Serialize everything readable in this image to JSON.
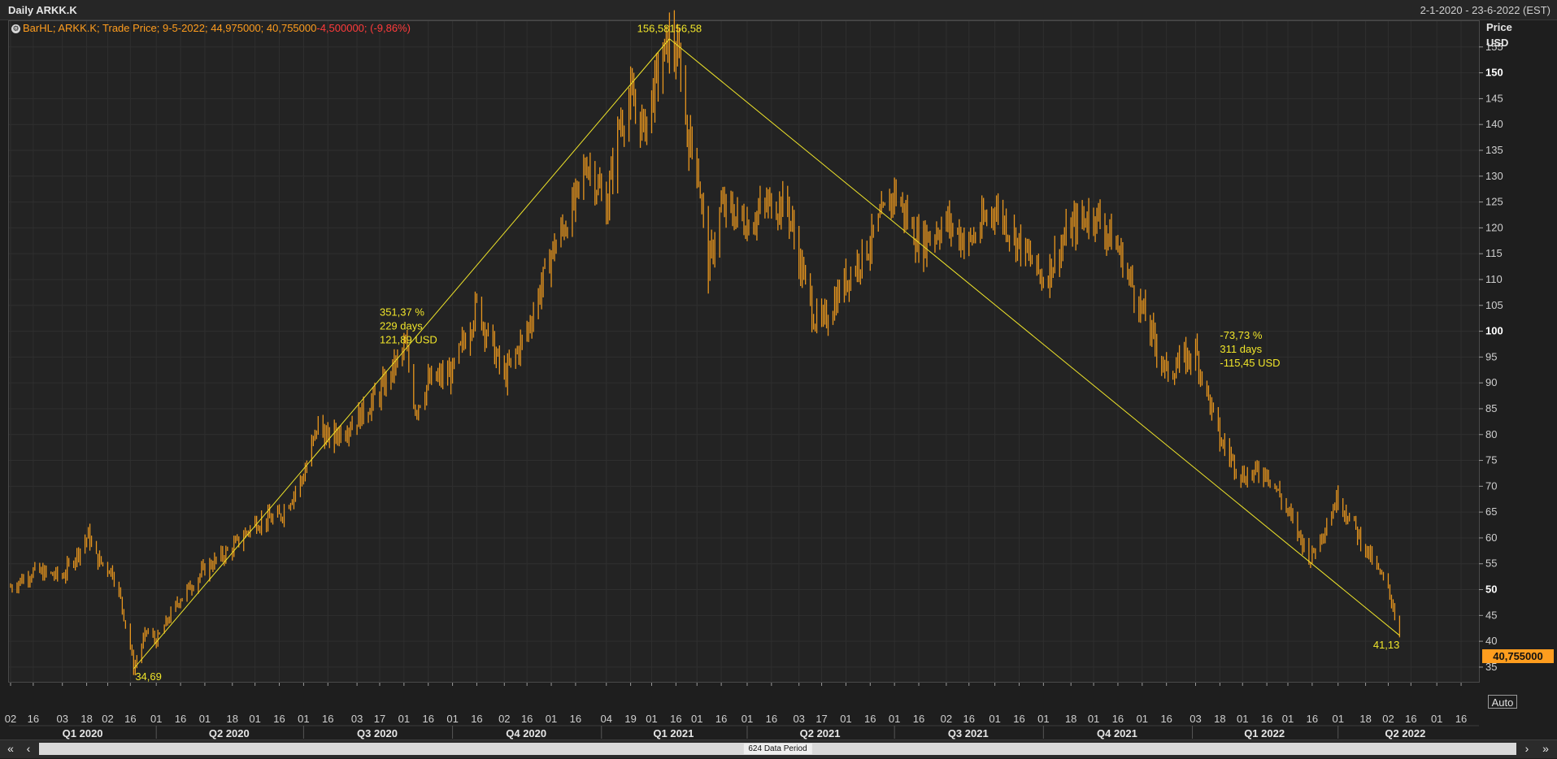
{
  "window": {
    "title": "Daily ARKK.K",
    "date_range": "2-1-2020 - 23-6-2022 (EST)"
  },
  "legend": {
    "icon": "settings-icon",
    "prefix": "BarHL; ARKK.K; Trade Price; 9-5-2022; 44,975000; 40,755000",
    "change": "-4,500000; (-9,86%)"
  },
  "y_axis": {
    "unit_line1": "Price",
    "unit_line2": "USD",
    "last_price_label": "40,755000",
    "auto_label": "Auto"
  },
  "scroll": {
    "label": "624 Data Period",
    "first_icon": "double-chevron-left-icon",
    "prev_icon": "chevron-left-icon",
    "next_icon": "chevron-right-icon",
    "last_icon": "double-chevron-right-icon"
  },
  "colors": {
    "bars": "#e8961e",
    "trendline": "#f0e52a",
    "annotation": "#f0e52a",
    "last_price_bg": "#ff9d1e"
  },
  "chart_data": {
    "type": "ohlc-bar",
    "title": "Daily ARKK.K",
    "ylabel": "Price USD",
    "ylim": [
      32,
      160
    ],
    "y_ticks": [
      {
        "value": 35,
        "label": "35"
      },
      {
        "value": 40,
        "label": "40"
      },
      {
        "value": 45,
        "label": "45"
      },
      {
        "value": 50,
        "label": "50"
      },
      {
        "value": 55,
        "label": "55"
      },
      {
        "value": 60,
        "label": "60"
      },
      {
        "value": 65,
        "label": "65"
      },
      {
        "value": 70,
        "label": "70"
      },
      {
        "value": 75,
        "label": "75"
      },
      {
        "value": 80,
        "label": "80"
      },
      {
        "value": 85,
        "label": "85"
      },
      {
        "value": 90,
        "label": "90"
      },
      {
        "value": 95,
        "label": "95"
      },
      {
        "value": 100,
        "label": "100"
      },
      {
        "value": 105,
        "label": "105"
      },
      {
        "value": 110,
        "label": "110"
      },
      {
        "value": 115,
        "label": "115"
      },
      {
        "value": 120,
        "label": "120"
      },
      {
        "value": 125,
        "label": "125"
      },
      {
        "value": 130,
        "label": "130"
      },
      {
        "value": 135,
        "label": "135"
      },
      {
        "value": 140,
        "label": "140"
      },
      {
        "value": 145,
        "label": "145"
      },
      {
        "value": 150,
        "label": "150"
      },
      {
        "value": 155,
        "label": "155"
      }
    ],
    "bold_y_ticks": [
      50,
      100,
      150
    ],
    "x_range": [
      "2020-01-02",
      "2022-06-23"
    ],
    "x_tick_labels": [
      {
        "date": "2020-01-02",
        "label": "02"
      },
      {
        "date": "2020-01-16",
        "label": "16"
      },
      {
        "date": "2020-02-03",
        "label": "03"
      },
      {
        "date": "2020-02-18",
        "label": "18"
      },
      {
        "date": "2020-03-02",
        "label": "02"
      },
      {
        "date": "2020-03-16",
        "label": "16"
      },
      {
        "date": "2020-04-01",
        "label": "01"
      },
      {
        "date": "2020-04-16",
        "label": "16"
      },
      {
        "date": "2020-05-01",
        "label": "01"
      },
      {
        "date": "2020-05-18",
        "label": "18"
      },
      {
        "date": "2020-06-01",
        "label": "01"
      },
      {
        "date": "2020-06-16",
        "label": "16"
      },
      {
        "date": "2020-07-01",
        "label": "01"
      },
      {
        "date": "2020-07-16",
        "label": "16"
      },
      {
        "date": "2020-08-03",
        "label": "03"
      },
      {
        "date": "2020-08-17",
        "label": "17"
      },
      {
        "date": "2020-09-01",
        "label": "01"
      },
      {
        "date": "2020-09-16",
        "label": "16"
      },
      {
        "date": "2020-10-01",
        "label": "01"
      },
      {
        "date": "2020-10-16",
        "label": "16"
      },
      {
        "date": "2020-11-02",
        "label": "02"
      },
      {
        "date": "2020-11-16",
        "label": "16"
      },
      {
        "date": "2020-12-01",
        "label": "01"
      },
      {
        "date": "2020-12-16",
        "label": "16"
      },
      {
        "date": "2021-01-04",
        "label": "04"
      },
      {
        "date": "2021-01-19",
        "label": "19"
      },
      {
        "date": "2021-02-01",
        "label": "01"
      },
      {
        "date": "2021-02-16",
        "label": "16"
      },
      {
        "date": "2021-03-01",
        "label": "01"
      },
      {
        "date": "2021-03-16",
        "label": "16"
      },
      {
        "date": "2021-04-01",
        "label": "01"
      },
      {
        "date": "2021-04-16",
        "label": "16"
      },
      {
        "date": "2021-05-03",
        "label": "03"
      },
      {
        "date": "2021-05-17",
        "label": "17"
      },
      {
        "date": "2021-06-01",
        "label": "01"
      },
      {
        "date": "2021-06-16",
        "label": "16"
      },
      {
        "date": "2021-07-01",
        "label": "01"
      },
      {
        "date": "2021-07-16",
        "label": "16"
      },
      {
        "date": "2021-08-02",
        "label": "02"
      },
      {
        "date": "2021-08-16",
        "label": "16"
      },
      {
        "date": "2021-09-01",
        "label": "01"
      },
      {
        "date": "2021-09-16",
        "label": "16"
      },
      {
        "date": "2021-10-01",
        "label": "01"
      },
      {
        "date": "2021-10-18",
        "label": "18"
      },
      {
        "date": "2021-11-01",
        "label": "01"
      },
      {
        "date": "2021-11-16",
        "label": "16"
      },
      {
        "date": "2021-12-01",
        "label": "01"
      },
      {
        "date": "2021-12-16",
        "label": "16"
      },
      {
        "date": "2022-01-03",
        "label": "03"
      },
      {
        "date": "2022-01-18",
        "label": "18"
      },
      {
        "date": "2022-02-01",
        "label": "01"
      },
      {
        "date": "2022-02-16",
        "label": "16"
      },
      {
        "date": "2022-03-01",
        "label": "01"
      },
      {
        "date": "2022-03-16",
        "label": "16"
      },
      {
        "date": "2022-04-01",
        "label": "01"
      },
      {
        "date": "2022-04-18",
        "label": "18"
      },
      {
        "date": "2022-05-02",
        "label": "02"
      },
      {
        "date": "2022-05-16",
        "label": "16"
      },
      {
        "date": "2022-06-01",
        "label": "01"
      },
      {
        "date": "2022-06-16",
        "label": "16"
      }
    ],
    "quarters": [
      {
        "label": "Q1 2020",
        "start": "2020-01-02",
        "end": "2020-03-31"
      },
      {
        "label": "Q2 2020",
        "start": "2020-04-01",
        "end": "2020-06-30"
      },
      {
        "label": "Q3 2020",
        "start": "2020-07-01",
        "end": "2020-09-30"
      },
      {
        "label": "Q4 2020",
        "start": "2020-10-01",
        "end": "2020-12-31"
      },
      {
        "label": "Q1 2021",
        "start": "2021-01-01",
        "end": "2021-03-31"
      },
      {
        "label": "Q2 2021",
        "start": "2021-04-01",
        "end": "2021-06-30"
      },
      {
        "label": "Q3 2021",
        "start": "2021-07-01",
        "end": "2021-09-30"
      },
      {
        "label": "Q4 2021",
        "start": "2021-10-01",
        "end": "2021-12-31"
      },
      {
        "label": "Q1 2022",
        "start": "2022-01-01",
        "end": "2022-03-31"
      },
      {
        "label": "Q2 2022",
        "start": "2022-04-01",
        "end": "2022-06-23"
      }
    ],
    "price_path": [
      [
        "2020-01-02",
        50.5
      ],
      [
        "2020-01-16",
        53.5
      ],
      [
        "2020-02-03",
        52.5
      ],
      [
        "2020-02-19",
        60.5
      ],
      [
        "2020-02-24",
        56
      ],
      [
        "2020-03-05",
        53.5
      ],
      [
        "2020-03-10",
        48
      ],
      [
        "2020-03-16",
        39
      ],
      [
        "2020-03-18",
        34.7
      ],
      [
        "2020-03-26",
        42
      ],
      [
        "2020-04-01",
        40
      ],
      [
        "2020-04-15",
        48
      ],
      [
        "2020-05-01",
        54
      ],
      [
        "2020-05-18",
        58
      ],
      [
        "2020-06-01",
        63
      ],
      [
        "2020-06-16",
        64
      ],
      [
        "2020-07-01",
        72
      ],
      [
        "2020-07-10",
        82
      ],
      [
        "2020-07-16",
        79
      ],
      [
        "2020-08-03",
        83
      ],
      [
        "2020-08-17",
        88
      ],
      [
        "2020-09-02",
        97
      ],
      [
        "2020-09-08",
        85
      ],
      [
        "2020-09-16",
        90
      ],
      [
        "2020-10-01",
        92
      ],
      [
        "2020-10-16",
        105
      ],
      [
        "2020-11-02",
        91
      ],
      [
        "2020-11-16",
        100
      ],
      [
        "2020-12-01",
        115
      ],
      [
        "2020-12-16",
        125
      ],
      [
        "2020-12-23",
        133
      ],
      [
        "2021-01-04",
        124
      ],
      [
        "2021-01-12",
        140
      ],
      [
        "2021-01-19",
        145
      ],
      [
        "2021-01-27",
        139
      ],
      [
        "2021-02-05",
        150
      ],
      [
        "2021-02-12",
        156.6
      ],
      [
        "2021-02-19",
        151
      ],
      [
        "2021-02-23",
        138
      ],
      [
        "2021-03-01",
        133
      ],
      [
        "2021-03-08",
        112
      ],
      [
        "2021-03-16",
        124
      ],
      [
        "2021-04-01",
        121
      ],
      [
        "2021-04-16",
        125
      ],
      [
        "2021-04-26",
        124
      ],
      [
        "2021-05-03",
        114
      ],
      [
        "2021-05-12",
        103
      ],
      [
        "2021-05-17",
        101
      ],
      [
        "2021-06-01",
        110
      ],
      [
        "2021-06-16",
        117
      ],
      [
        "2021-07-01",
        127
      ],
      [
        "2021-07-16",
        117
      ],
      [
        "2021-08-02",
        121
      ],
      [
        "2021-08-16",
        117
      ],
      [
        "2021-09-01",
        124
      ],
      [
        "2021-09-16",
        117
      ],
      [
        "2021-10-01",
        110
      ],
      [
        "2021-10-18",
        120
      ],
      [
        "2021-11-01",
        123
      ],
      [
        "2021-11-16",
        116
      ],
      [
        "2021-12-01",
        104
      ],
      [
        "2021-12-16",
        92
      ],
      [
        "2022-01-03",
        96
      ],
      [
        "2022-01-18",
        79
      ],
      [
        "2022-02-01",
        72
      ],
      [
        "2022-02-16",
        73
      ],
      [
        "2022-03-01",
        65
      ],
      [
        "2022-03-15",
        56
      ],
      [
        "2022-04-01",
        68
      ],
      [
        "2022-04-18",
        58
      ],
      [
        "2022-05-02",
        50
      ],
      [
        "2022-05-09",
        42.5
      ]
    ],
    "last_bar": {
      "date": "2022-05-09",
      "high": 44.975,
      "low": 40.755,
      "change": -4.5,
      "change_pct": -9.86
    },
    "trendlines": [
      {
        "from": [
          "2020-03-18",
          34.69
        ],
        "to": [
          "2021-02-12",
          156.58
        ]
      },
      {
        "from": [
          "2021-02-12",
          156.58
        ],
        "to": [
          "2022-05-09",
          41.13
        ]
      }
    ],
    "annotations": [
      {
        "date": "2020-03-18",
        "value": 34.69,
        "text": "34,69",
        "anchor": "below"
      },
      {
        "date": "2021-02-12",
        "value": 156.58,
        "text": "156,58156,58",
        "anchor": "above"
      },
      {
        "date": "2022-05-09",
        "value": 41.13,
        "text": "41,13",
        "anchor": "below-left"
      },
      {
        "date": "2020-08-17",
        "value": 103,
        "lines": [
          "351,37 %",
          "229 days",
          "121,89 USD"
        ]
      },
      {
        "date": "2022-01-18",
        "value": 98.5,
        "lines": [
          "-73,73 %",
          "311 days",
          "-115,45 USD"
        ]
      }
    ]
  }
}
